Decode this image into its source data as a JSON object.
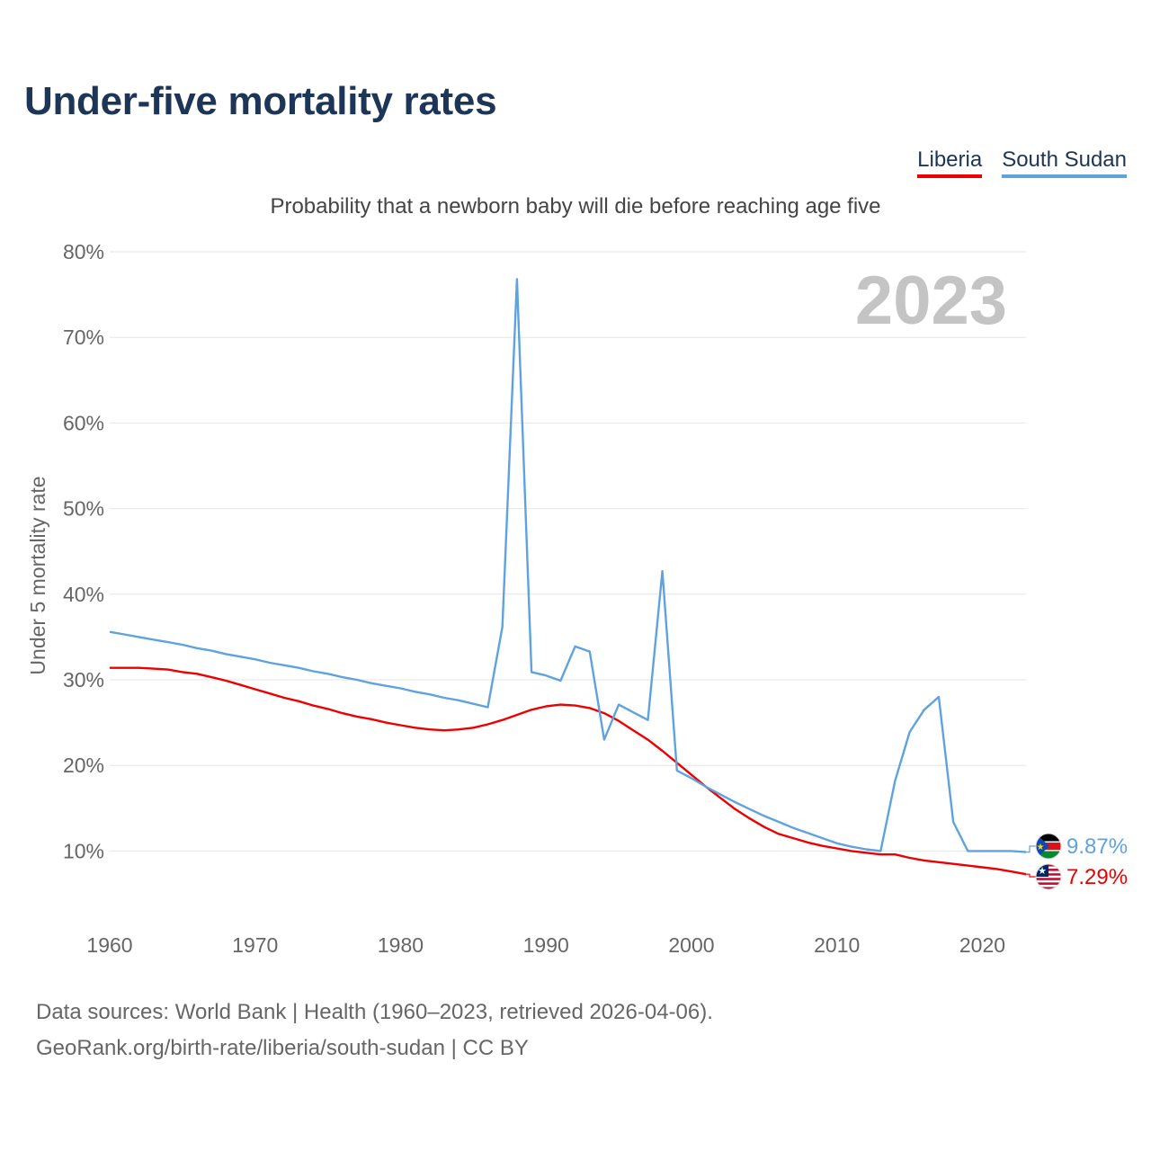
{
  "chart_data": {
    "type": "line",
    "title": "Under-five mortality rates",
    "subtitle": "Probability that a newborn baby will die before reaching age five",
    "ylabel": "Under 5 mortality rate",
    "xlabel": "",
    "year_label": "2023",
    "xlim": [
      1960,
      2023
    ],
    "ylim": [
      3,
      80
    ],
    "x_ticks": [
      1960,
      1970,
      1980,
      1990,
      2000,
      2010,
      2020
    ],
    "y_ticks": [
      10,
      20,
      30,
      40,
      50,
      60,
      70,
      80
    ],
    "y_tick_labels": [
      "10%",
      "20%",
      "30%",
      "40%",
      "50%",
      "60%",
      "70%",
      "80%"
    ],
    "grid": true,
    "legend_position": "top-right",
    "x": [
      1960,
      1961,
      1962,
      1963,
      1964,
      1965,
      1966,
      1967,
      1968,
      1969,
      1970,
      1971,
      1972,
      1973,
      1974,
      1975,
      1976,
      1977,
      1978,
      1979,
      1980,
      1981,
      1982,
      1983,
      1984,
      1985,
      1986,
      1987,
      1988,
      1989,
      1990,
      1991,
      1992,
      1993,
      1994,
      1995,
      1996,
      1997,
      1998,
      1999,
      2000,
      2001,
      2002,
      2003,
      2004,
      2005,
      2006,
      2007,
      2008,
      2009,
      2010,
      2011,
      2012,
      2013,
      2014,
      2015,
      2016,
      2017,
      2018,
      2019,
      2020,
      2021,
      2022,
      2023
    ],
    "series": [
      {
        "name": "Liberia",
        "color": "#ee0000",
        "end_label": "7.29%",
        "values": [
          31.4,
          31.4,
          31.4,
          31.3,
          31.2,
          30.9,
          30.7,
          30.3,
          29.9,
          29.4,
          28.9,
          28.4,
          27.9,
          27.5,
          27.0,
          26.6,
          26.1,
          25.7,
          25.4,
          25.0,
          24.7,
          24.4,
          24.2,
          24.1,
          24.2,
          24.4,
          24.8,
          25.3,
          25.9,
          26.5,
          26.9,
          27.1,
          27.0,
          26.7,
          26.1,
          25.2,
          24.1,
          23.0,
          21.7,
          20.3,
          18.9,
          17.5,
          16.2,
          14.9,
          13.8,
          12.8,
          12.0,
          11.5,
          11.0,
          10.6,
          10.3,
          10.0,
          9.8,
          9.6,
          9.6,
          9.2,
          8.9,
          8.7,
          8.5,
          8.3,
          8.1,
          7.9,
          7.6,
          7.29
        ]
      },
      {
        "name": "South Sudan",
        "color": "#5ea3e0",
        "end_label": "9.87%",
        "values": [
          35.6,
          35.3,
          35.0,
          34.7,
          34.4,
          34.1,
          33.7,
          33.4,
          33.0,
          32.7,
          32.4,
          32.0,
          31.7,
          31.4,
          31.0,
          30.7,
          30.3,
          30.0,
          29.6,
          29.3,
          29.0,
          28.6,
          28.3,
          27.9,
          27.6,
          27.2,
          26.8,
          36.2,
          76.8,
          30.9,
          30.5,
          29.9,
          33.9,
          33.3,
          23.0,
          27.1,
          26.2,
          25.3,
          42.7,
          19.4,
          18.5,
          17.5,
          16.6,
          15.7,
          14.9,
          14.1,
          13.4,
          12.7,
          12.1,
          11.5,
          10.9,
          10.5,
          10.2,
          10.0,
          18.2,
          23.9,
          26.5,
          28.0,
          13.4,
          10.0,
          10.0,
          10.0,
          10.0,
          9.87
        ]
      }
    ]
  },
  "footer": {
    "line1": "Data sources: World Bank | Health (1960–2023, retrieved 2026-04-06).",
    "line2": "GeoRank.org/birth-rate/liberia/south-sudan | CC BY"
  }
}
